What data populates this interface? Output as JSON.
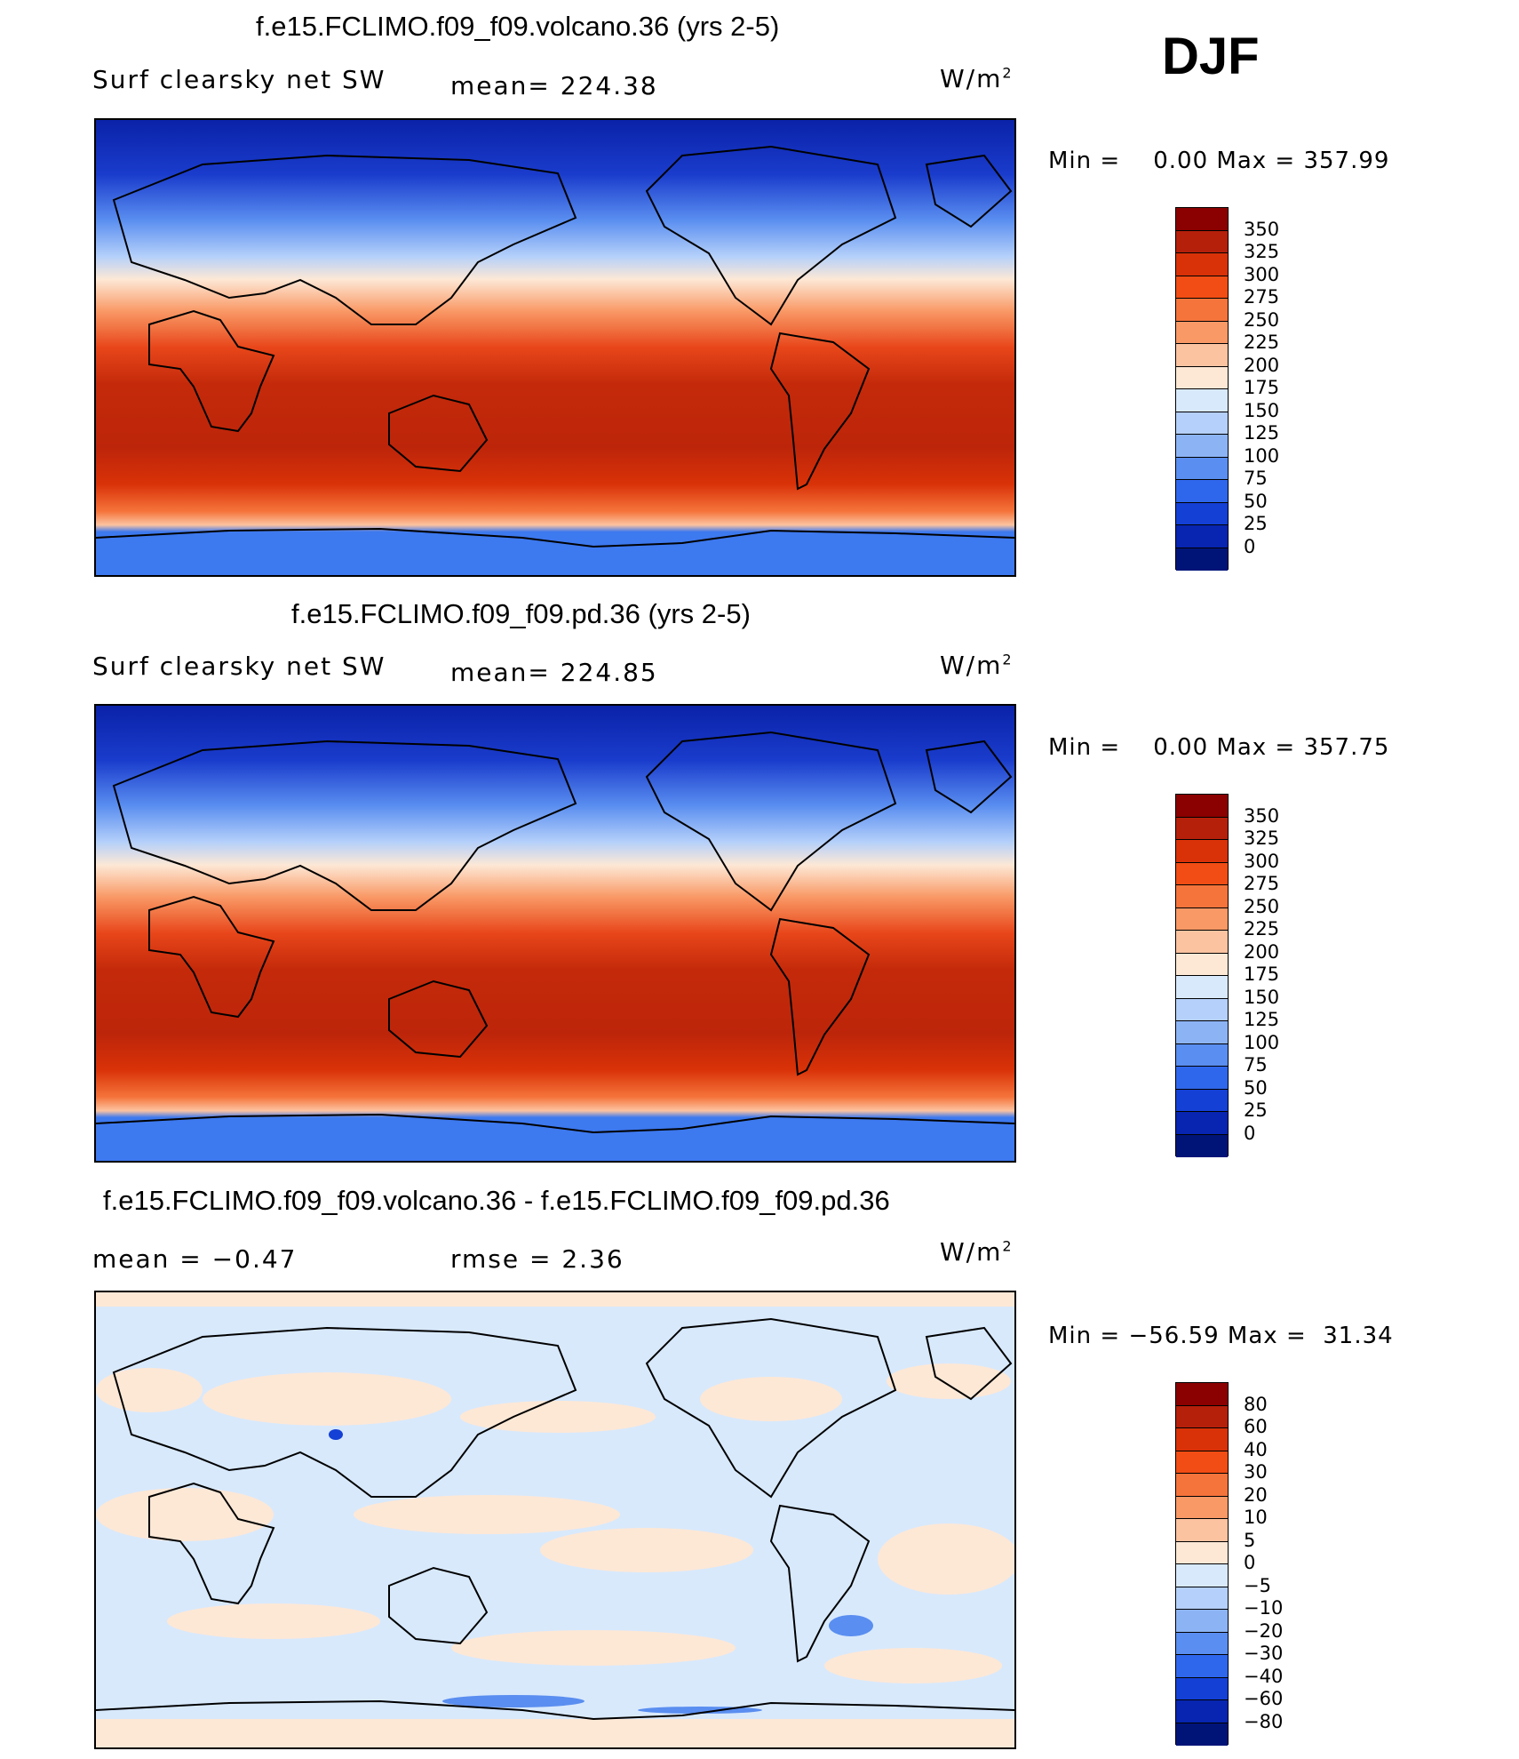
{
  "season": "DJF",
  "panels": [
    {
      "id": "volcano",
      "title": "f.e15.FCLIMO.f09_f09.volcano.36 (yrs 2-5)",
      "left": "Surf clearsky net SW",
      "center": "mean= 224.38",
      "units": "W/m",
      "units_sup": "2",
      "minmax": "Min =    0.00 Max = 357.99",
      "colorbar": {
        "labels": [
          "350",
          "325",
          "300",
          "275",
          "250",
          "225",
          "200",
          "175",
          "150",
          "125",
          "100",
          "75",
          "50",
          "25",
          "0"
        ],
        "colors": [
          "#8b0000",
          "#b5200a",
          "#d93208",
          "#f24d14",
          "#f5743b",
          "#f99966",
          "#fcc3a1",
          "#fde8d6",
          "#d8e9fc",
          "#b5d0fa",
          "#8cb4f5",
          "#5a8ef0",
          "#2f67ec",
          "#1440d6",
          "#0725b0",
          "#001478"
        ]
      }
    },
    {
      "id": "pd",
      "title": "f.e15.FCLIMO.f09_f09.pd.36 (yrs 2-5)",
      "left": "Surf clearsky net SW",
      "center": "mean= 224.85",
      "units": "W/m",
      "units_sup": "2",
      "minmax": "Min =    0.00 Max = 357.75",
      "colorbar": {
        "labels": [
          "350",
          "325",
          "300",
          "275",
          "250",
          "225",
          "200",
          "175",
          "150",
          "125",
          "100",
          "75",
          "50",
          "25",
          "0"
        ],
        "colors": [
          "#8b0000",
          "#b5200a",
          "#d93208",
          "#f24d14",
          "#f5743b",
          "#f99966",
          "#fcc3a1",
          "#fde8d6",
          "#d8e9fc",
          "#b5d0fa",
          "#8cb4f5",
          "#5a8ef0",
          "#2f67ec",
          "#1440d6",
          "#0725b0",
          "#001478"
        ]
      }
    },
    {
      "id": "diff",
      "title": "f.e15.FCLIMO.f09_f09.volcano.36 - f.e15.FCLIMO.f09_f09.pd.36",
      "left": "mean =   −0.47",
      "center": "rmse =    2.36",
      "units": "W/m",
      "units_sup": "2",
      "minmax": "Min = −56.59 Max =  31.34",
      "colorbar": {
        "labels": [
          "80",
          "60",
          "40",
          "30",
          "20",
          "10",
          "5",
          "0",
          "−5",
          "−10",
          "−20",
          "−30",
          "−40",
          "−60",
          "−80"
        ],
        "colors": [
          "#8b0000",
          "#b5200a",
          "#d93208",
          "#f24d14",
          "#f5743b",
          "#f99966",
          "#fcc3a1",
          "#fde8d6",
          "#d8e9fc",
          "#b5d0fa",
          "#8cb4f5",
          "#5a8ef0",
          "#2f67ec",
          "#1440d6",
          "#0725b0",
          "#001478"
        ]
      }
    }
  ],
  "map_colors": {
    "polar_ocean": "#1a35c8",
    "antarctica": "#3d79ef",
    "continent_outline": "#000000",
    "diff_background": "#d8e9fc",
    "diff_positive": "#fde8d6"
  }
}
